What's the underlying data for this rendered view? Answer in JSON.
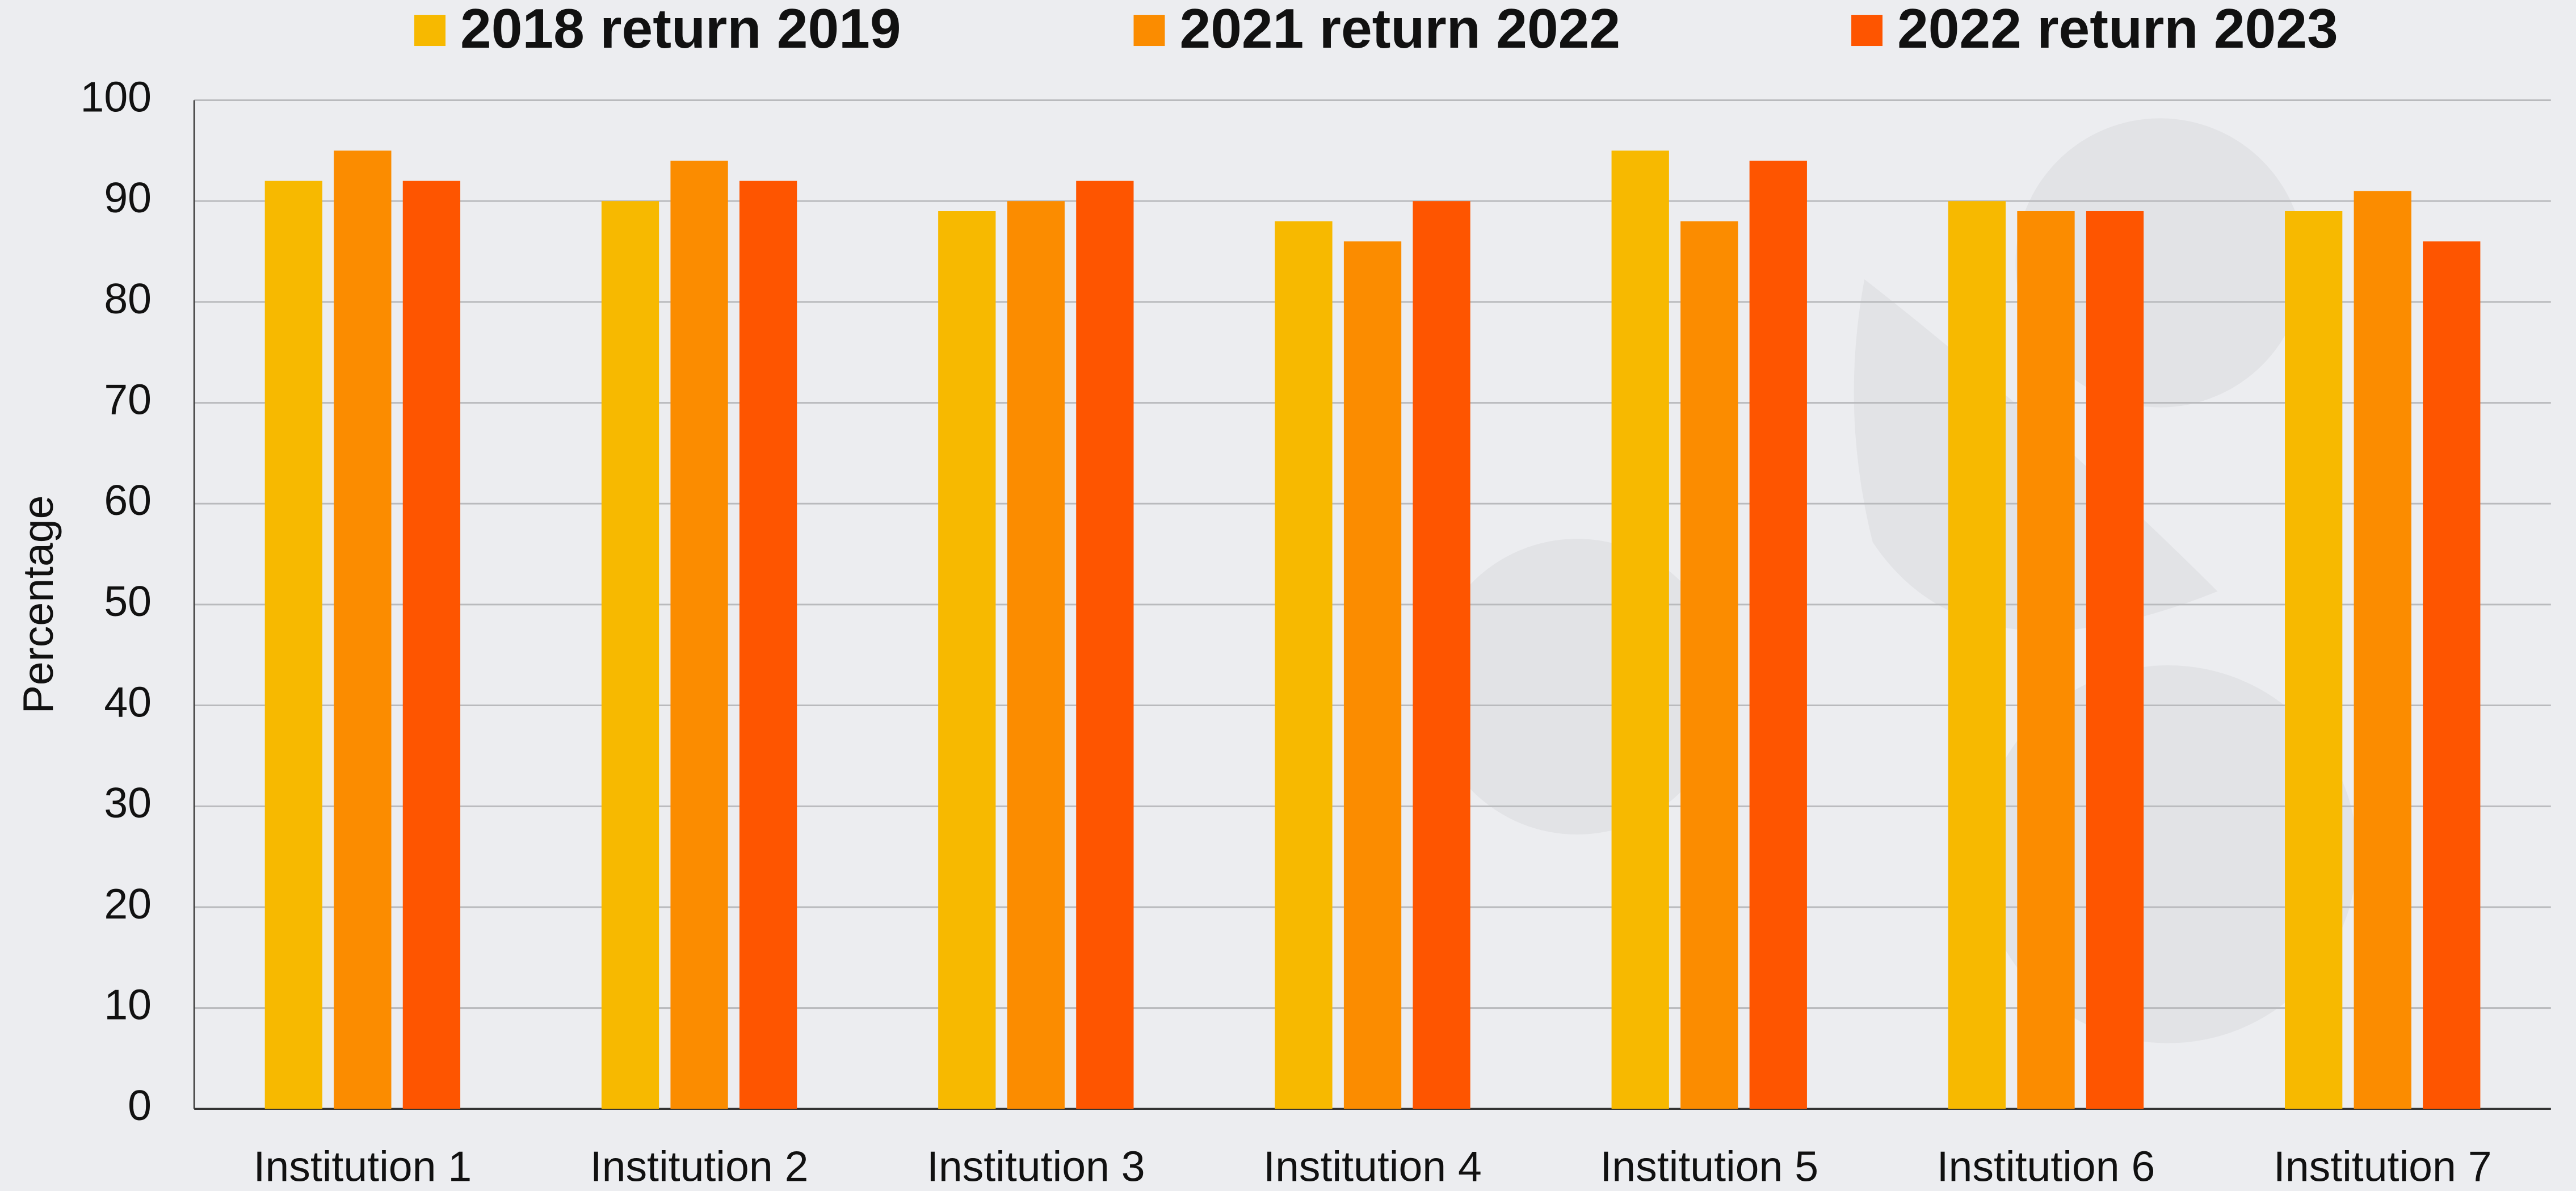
{
  "chart_data": {
    "type": "bar",
    "categories": [
      "Institution 1",
      "Institution 2",
      "Institution 3",
      "Institution 4",
      "Institution 5",
      "Institution 6",
      "Institution 7"
    ],
    "series": [
      {
        "name": "2018 return 2019",
        "color": "#f7b900",
        "values": [
          92,
          90,
          89,
          88,
          95,
          90,
          89
        ]
      },
      {
        "name": "2021 return 2022",
        "color": "#fb8c00",
        "values": [
          95,
          94,
          90,
          86,
          88,
          89,
          91
        ]
      },
      {
        "name": "2022 return 2023",
        "color": "#fe5500",
        "values": [
          92,
          92,
          92,
          90,
          94,
          89,
          86
        ]
      }
    ],
    "y_label": "Percentage",
    "ylim": [
      0,
      100
    ],
    "yticks": [
      0,
      10,
      20,
      30,
      40,
      50,
      60,
      70,
      80,
      90,
      100
    ],
    "grid": true,
    "legend": "top"
  }
}
